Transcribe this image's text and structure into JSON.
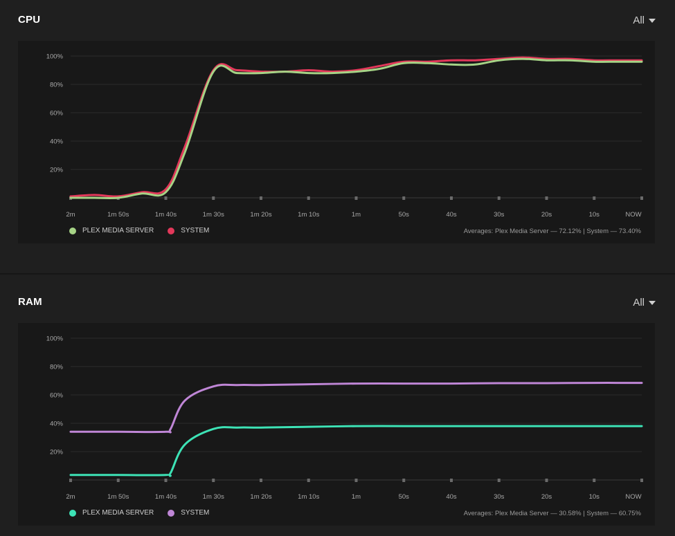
{
  "cpu": {
    "title": "CPU",
    "filter": "All",
    "legend": [
      {
        "label": "PLEX MEDIA SERVER",
        "color": "#a6d386"
      },
      {
        "label": "SYSTEM",
        "color": "#e2385a"
      }
    ],
    "averages": "Averages: Plex Media Server — 72.12% | System — 73.40%"
  },
  "ram": {
    "title": "RAM",
    "filter": "All",
    "legend": [
      {
        "label": "PLEX MEDIA SERVER",
        "color": "#3de3b6"
      },
      {
        "label": "SYSTEM",
        "color": "#bf86d6"
      }
    ],
    "averages": "Averages: Plex Media Server — 30.58% | System — 60.75%"
  },
  "chart_data": [
    {
      "type": "line",
      "title": "CPU",
      "x": [
        120,
        110,
        100,
        90,
        80,
        70,
        60,
        50,
        40,
        30,
        20,
        10,
        0
      ],
      "xticklabels": [
        "2m",
        "1m 50s",
        "1m 40s",
        "1m 30s",
        "1m 20s",
        "1m 10s",
        "1m",
        "50s",
        "40s",
        "30s",
        "20s",
        "10s",
        "NOW"
      ],
      "yticklabels": [
        "100%",
        "80%",
        "60%",
        "40%",
        "20%"
      ],
      "ylim": [
        0,
        100
      ],
      "grid": true,
      "legend_position": "bottom-left",
      "series": [
        {
          "name": "SYSTEM",
          "color": "#e2385a",
          "points": [
            [
              120,
              1
            ],
            [
              115,
              2
            ],
            [
              110,
              1
            ],
            [
              105,
              4
            ],
            [
              100,
              6
            ],
            [
              96,
              36
            ],
            [
              90,
              90
            ],
            [
              85,
              90
            ],
            [
              80,
              89
            ],
            [
              75,
              89
            ],
            [
              70,
              90
            ],
            [
              65,
              89
            ],
            [
              60,
              90
            ],
            [
              55,
              93
            ],
            [
              50,
              96
            ],
            [
              45,
              96
            ],
            [
              40,
              97
            ],
            [
              35,
              97
            ],
            [
              30,
              98
            ],
            [
              25,
              99
            ],
            [
              20,
              98
            ],
            [
              15,
              98
            ],
            [
              10,
              97
            ],
            [
              5,
              97
            ],
            [
              0,
              97
            ]
          ]
        },
        {
          "name": "PLEX MEDIA SERVER",
          "color": "#a6d386",
          "points": [
            [
              120,
              0
            ],
            [
              115,
              0
            ],
            [
              110,
              0
            ],
            [
              105,
              3
            ],
            [
              100,
              4
            ],
            [
              96,
              32
            ],
            [
              90,
              89
            ],
            [
              85,
              88
            ],
            [
              80,
              88
            ],
            [
              75,
              89
            ],
            [
              70,
              88
            ],
            [
              65,
              88
            ],
            [
              60,
              89
            ],
            [
              55,
              91
            ],
            [
              50,
              95
            ],
            [
              45,
              95
            ],
            [
              40,
              94
            ],
            [
              35,
              94
            ],
            [
              30,
              97
            ],
            [
              25,
              98
            ],
            [
              20,
              97
            ],
            [
              15,
              97
            ],
            [
              10,
              96
            ],
            [
              5,
              96
            ],
            [
              0,
              96
            ]
          ]
        }
      ]
    },
    {
      "type": "line",
      "title": "RAM",
      "x": [
        120,
        110,
        100,
        90,
        80,
        70,
        60,
        50,
        40,
        30,
        20,
        10,
        0
      ],
      "xticklabels": [
        "2m",
        "1m 50s",
        "1m 40s",
        "1m 30s",
        "1m 20s",
        "1m 10s",
        "1m",
        "50s",
        "40s",
        "30s",
        "20s",
        "10s",
        "NOW"
      ],
      "yticklabels": [
        "100%",
        "80%",
        "60%",
        "40%",
        "20%"
      ],
      "ylim": [
        0,
        100
      ],
      "grid": true,
      "legend_position": "bottom-left",
      "series": [
        {
          "name": "SYSTEM",
          "color": "#bf86d6",
          "points": [
            [
              120,
              34
            ],
            [
              110,
              34
            ],
            [
              100,
              34
            ],
            [
              99,
              36
            ],
            [
              96,
              56
            ],
            [
              90,
              66
            ],
            [
              85,
              67
            ],
            [
              80,
              67
            ],
            [
              70,
              67.5
            ],
            [
              60,
              68
            ],
            [
              50,
              68
            ],
            [
              40,
              68
            ],
            [
              30,
              68.3
            ],
            [
              20,
              68.3
            ],
            [
              10,
              68.5
            ],
            [
              0,
              68.5
            ]
          ]
        },
        {
          "name": "PLEX MEDIA SERVER",
          "color": "#3de3b6",
          "points": [
            [
              120,
              3.5
            ],
            [
              110,
              3.5
            ],
            [
              100,
              3.5
            ],
            [
              99,
              5
            ],
            [
              96,
              25
            ],
            [
              90,
              36
            ],
            [
              85,
              37
            ],
            [
              80,
              37
            ],
            [
              70,
              37.5
            ],
            [
              60,
              38
            ],
            [
              50,
              38
            ],
            [
              40,
              38
            ],
            [
              30,
              38
            ],
            [
              20,
              38
            ],
            [
              10,
              38
            ],
            [
              0,
              38
            ]
          ]
        }
      ]
    }
  ]
}
